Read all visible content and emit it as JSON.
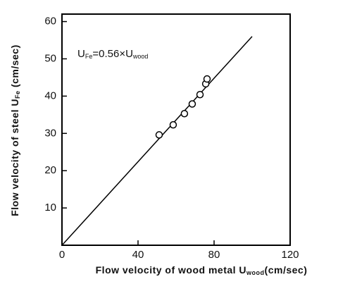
{
  "chart_data": {
    "type": "scatter",
    "xlabel": [
      "Flow velocity of wood metal U",
      "wood",
      "(cm/sec)"
    ],
    "ylabel": [
      "Flow velocity of steel U",
      "Fe",
      " (cm/sec)"
    ],
    "annotation": [
      "U",
      "Fe",
      "=0.56×U",
      "wood"
    ],
    "points": {
      "x": [
        51.1,
        58.5,
        64.4,
        68.5,
        72.6,
        75.6,
        76.3
      ],
      "values": [
        29.6,
        32.3,
        35.3,
        37.9,
        40.4,
        43.3,
        44.6
      ]
    },
    "fit": {
      "x": [
        0,
        100
      ],
      "values": [
        0,
        56
      ]
    },
    "color": "#000000",
    "xlim": [
      0,
      120
    ],
    "xticks": [
      0,
      40,
      80,
      120
    ],
    "ylim": [
      0,
      62
    ],
    "yticks": [
      10,
      20,
      30,
      40,
      50,
      60
    ]
  }
}
